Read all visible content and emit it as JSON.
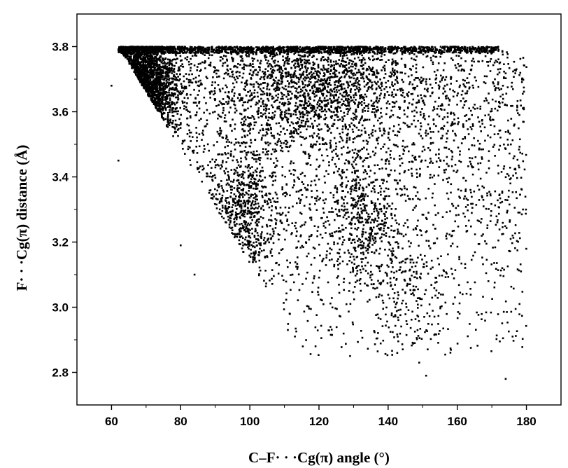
{
  "chart_data": {
    "type": "scatter",
    "title": "",
    "xlabel": "C–F· · ·Cg(π) angle (°)",
    "ylabel": "F· · ·Cg(π) distance (Å)",
    "xlim": [
      50,
      190
    ],
    "ylim": [
      2.7,
      3.9
    ],
    "xticks": [
      60,
      80,
      100,
      120,
      140,
      160,
      180
    ],
    "yticks": [
      2.8,
      3.0,
      3.2,
      3.4,
      3.6,
      3.8
    ],
    "xtick_labels": [
      "60",
      "80",
      "100",
      "120",
      "140",
      "160",
      "180"
    ],
    "ytick_labels": [
      "2.8",
      "3.0",
      "3.2",
      "3.4",
      "3.6",
      "3.8"
    ],
    "grid": false,
    "legend": "none",
    "marker_color": "#000000",
    "series": [
      {
        "density_regions": [
          {
            "x_center": 68,
            "y_center": 3.68,
            "x_spread": 5,
            "y_spread": 0.09,
            "weight": 1800
          },
          {
            "x_center": 118,
            "y_center": 3.68,
            "x_spread": 14,
            "y_spread": 0.09,
            "weight": 1600
          },
          {
            "x_center": 98,
            "y_center": 3.28,
            "x_spread": 5,
            "y_spread": 0.1,
            "weight": 550
          },
          {
            "x_center": 132,
            "y_center": 3.28,
            "x_spread": 5,
            "y_spread": 0.1,
            "weight": 450
          },
          {
            "x_center": 145,
            "y_center": 3.05,
            "x_spread": 6,
            "y_spread": 0.1,
            "weight": 200
          }
        ],
        "outliers": [
          {
            "x": 174,
            "y": 2.78
          },
          {
            "x": 151,
            "y": 2.79
          },
          {
            "x": 129,
            "y": 2.85
          },
          {
            "x": 149,
            "y": 2.83
          },
          {
            "x": 119,
            "y": 2.88
          },
          {
            "x": 111,
            "y": 2.93
          },
          {
            "x": 178,
            "y": 3.01
          },
          {
            "x": 176,
            "y": 3.22
          },
          {
            "x": 179,
            "y": 3.3
          },
          {
            "x": 176,
            "y": 2.91
          },
          {
            "x": 60,
            "y": 3.68
          },
          {
            "x": 62,
            "y": 3.45
          },
          {
            "x": 80,
            "y": 3.19
          },
          {
            "x": 84,
            "y": 3.1
          },
          {
            "x": 169,
            "y": 3.08
          },
          {
            "x": 173,
            "y": 3.12
          }
        ]
      }
    ]
  }
}
